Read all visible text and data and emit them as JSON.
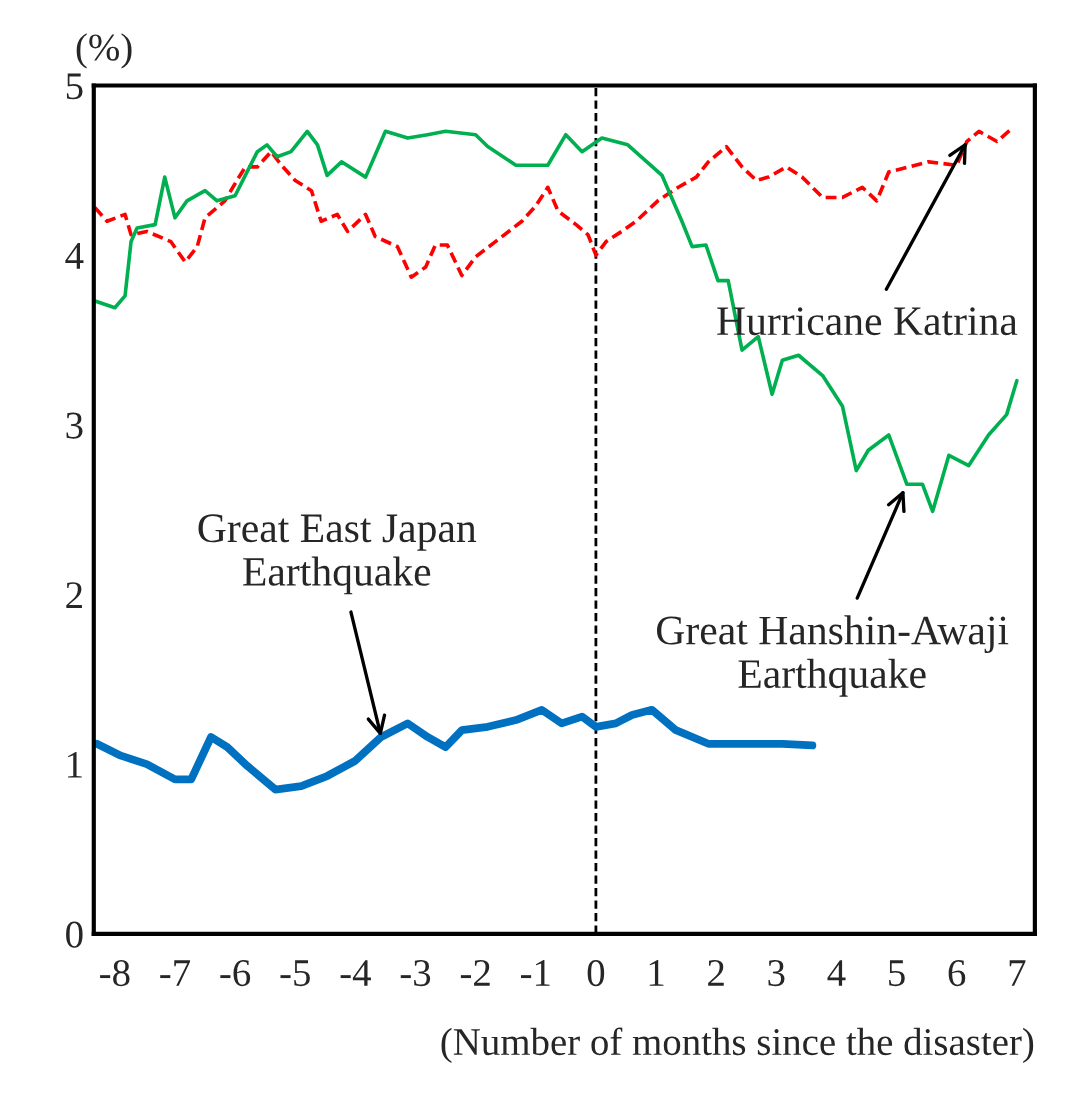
{
  "chart_data": {
    "type": "line",
    "xlabel": "(Number of months since the disaster)",
    "ylabel": "(%)",
    "xlim": [
      -8.35,
      7.3
    ],
    "xticks": [
      -8,
      -7,
      -6,
      -5,
      -4,
      -3,
      -2,
      -1,
      0,
      1,
      2,
      3,
      4,
      5,
      6,
      7
    ],
    "ylim": [
      0,
      5
    ],
    "yticks": [
      0,
      1,
      2,
      3,
      4,
      5
    ],
    "grid": false,
    "legend": false,
    "marker": "none",
    "ref_lines": [
      {
        "axis": "x",
        "value": 0,
        "line_style": "dashed",
        "color": "#000000"
      }
    ],
    "annotations": [
      {
        "text": "Hurricane Katrina",
        "x": 6.17,
        "y": 4.67
      },
      {
        "text": "Great Hanshin-Awaji\nEarthquake",
        "x": 5.13,
        "y": 2.62
      },
      {
        "text": "Great East Japan\nEarthquake",
        "x": -3.57,
        "y": 1.16
      }
    ],
    "series": [
      {
        "color": "#ff0000",
        "line_style": "dashed",
        "x": [
          -8.33,
          -8.13,
          -7.83,
          -7.73,
          -7.47,
          -7.07,
          -6.83,
          -6.63,
          -6.5,
          -6.17,
          -5.97,
          -5.83,
          -5.63,
          -5.4,
          -5.23,
          -5.0,
          -4.73,
          -4.57,
          -4.3,
          -4.13,
          -3.83,
          -3.67,
          -3.3,
          -3.07,
          -2.83,
          -2.67,
          -2.47,
          -2.23,
          -2.0,
          -1.67,
          -1.23,
          -1.0,
          -0.8,
          -0.63,
          -0.33,
          -0.13,
          0.0,
          0.17,
          0.43,
          0.67,
          1.03,
          1.37,
          1.67,
          1.87,
          2.17,
          2.43,
          2.67,
          2.87,
          3.17,
          3.43,
          3.77,
          4.1,
          4.43,
          4.67,
          4.87,
          5.2,
          5.53,
          6.0,
          6.17,
          6.37,
          6.67,
          6.93
        ],
        "values": [
          4.28,
          4.2,
          4.24,
          4.12,
          4.14,
          4.08,
          3.96,
          4.05,
          4.22,
          4.32,
          4.44,
          4.52,
          4.52,
          4.61,
          4.53,
          4.44,
          4.38,
          4.2,
          4.24,
          4.14,
          4.24,
          4.11,
          4.05,
          3.87,
          3.93,
          4.06,
          4.06,
          3.88,
          3.99,
          4.08,
          4.2,
          4.29,
          4.4,
          4.26,
          4.18,
          4.12,
          4.0,
          4.08,
          4.14,
          4.2,
          4.32,
          4.4,
          4.46,
          4.55,
          4.64,
          4.52,
          4.44,
          4.46,
          4.52,
          4.46,
          4.34,
          4.34,
          4.4,
          4.32,
          4.49,
          4.52,
          4.55,
          4.53,
          4.67,
          4.73,
          4.67,
          4.75
        ]
      },
      {
        "color": "#00b050",
        "line_style": "solid",
        "x": [
          -8.33,
          -8.0,
          -7.83,
          -7.73,
          -7.63,
          -7.33,
          -7.17,
          -7.0,
          -6.8,
          -6.5,
          -6.3,
          -6.0,
          -5.83,
          -5.63,
          -5.47,
          -5.3,
          -5.07,
          -4.8,
          -4.63,
          -4.47,
          -4.23,
          -3.83,
          -3.67,
          -3.5,
          -3.13,
          -2.8,
          -2.5,
          -2.0,
          -1.8,
          -1.33,
          -0.8,
          -0.5,
          -0.23,
          0.1,
          0.53,
          1.1,
          1.43,
          1.6,
          1.83,
          2.03,
          2.2,
          2.43,
          2.7,
          2.93,
          3.1,
          3.37,
          3.77,
          4.1,
          4.33,
          4.53,
          4.87,
          5.17,
          5.43,
          5.6,
          5.87,
          6.2,
          6.53,
          6.83,
          7.0
        ],
        "values": [
          3.73,
          3.69,
          3.76,
          4.08,
          4.16,
          4.18,
          4.46,
          4.22,
          4.32,
          4.38,
          4.32,
          4.35,
          4.47,
          4.61,
          4.65,
          4.58,
          4.61,
          4.73,
          4.65,
          4.47,
          4.55,
          4.46,
          4.59,
          4.73,
          4.69,
          4.71,
          4.73,
          4.71,
          4.64,
          4.53,
          4.53,
          4.71,
          4.61,
          4.69,
          4.65,
          4.47,
          4.2,
          4.05,
          4.06,
          3.85,
          3.85,
          3.44,
          3.52,
          3.18,
          3.38,
          3.41,
          3.29,
          3.11,
          2.73,
          2.85,
          2.94,
          2.65,
          2.65,
          2.49,
          2.82,
          2.76,
          2.94,
          3.06,
          3.26
        ]
      },
      {
        "color": "#0070c0",
        "line_style": "solid",
        "x": [
          -8.3,
          -7.9,
          -7.47,
          -7.0,
          -6.73,
          -6.4,
          -6.13,
          -5.8,
          -5.33,
          -4.9,
          -4.47,
          -4.0,
          -3.57,
          -3.13,
          -2.8,
          -2.5,
          -2.23,
          -1.8,
          -1.33,
          -0.9,
          -0.57,
          -0.23,
          0.0,
          0.33,
          0.6,
          0.93,
          1.33,
          1.87,
          2.43,
          3.1,
          3.6
        ],
        "values": [
          1.12,
          1.05,
          1.0,
          0.91,
          0.91,
          1.16,
          1.1,
          0.99,
          0.85,
          0.87,
          0.93,
          1.02,
          1.16,
          1.24,
          1.16,
          1.1,
          1.2,
          1.22,
          1.26,
          1.32,
          1.24,
          1.28,
          1.22,
          1.24,
          1.29,
          1.32,
          1.2,
          1.12,
          1.12,
          1.12,
          1.11
        ]
      }
    ]
  }
}
